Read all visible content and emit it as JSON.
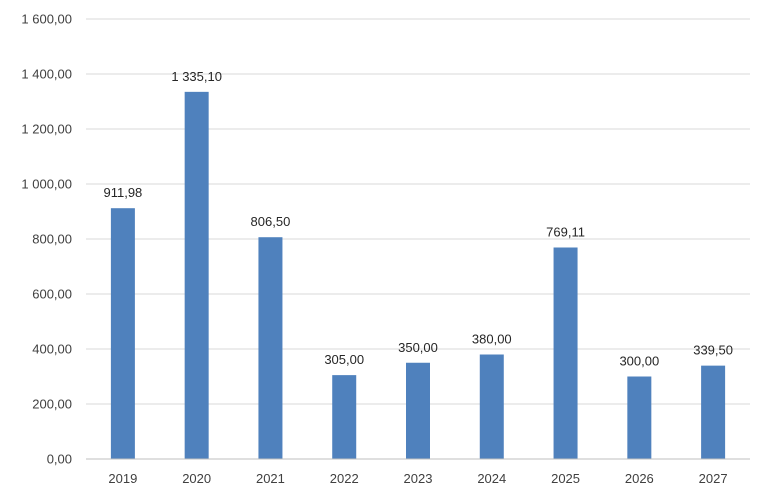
{
  "chart_data": {
    "type": "bar",
    "title": "",
    "xlabel": "",
    "ylabel": "",
    "categories": [
      "2019",
      "2020",
      "2021",
      "2022",
      "2023",
      "2024",
      "2025",
      "2026",
      "2027"
    ],
    "values": [
      911.98,
      1335.1,
      806.5,
      305.0,
      350.0,
      380.0,
      769.11,
      300.0,
      339.5
    ],
    "data_labels": [
      "911,98",
      "1 335,10",
      "806,50",
      "305,00",
      "350,00",
      "380,00",
      "769,11",
      "300,00",
      "339,50"
    ],
    "ylim": [
      0,
      1600
    ],
    "y_ticks": [
      0,
      200,
      400,
      600,
      800,
      1000,
      1200,
      1400,
      1600
    ],
    "y_tick_labels": [
      "0,00",
      "200,00",
      "400,00",
      "600,00",
      "800,00",
      "1 000,00",
      "1 200,00",
      "1 400,00",
      "1 600,00"
    ],
    "bar_color": "#4f81bd",
    "grid": true,
    "legend": "none"
  }
}
